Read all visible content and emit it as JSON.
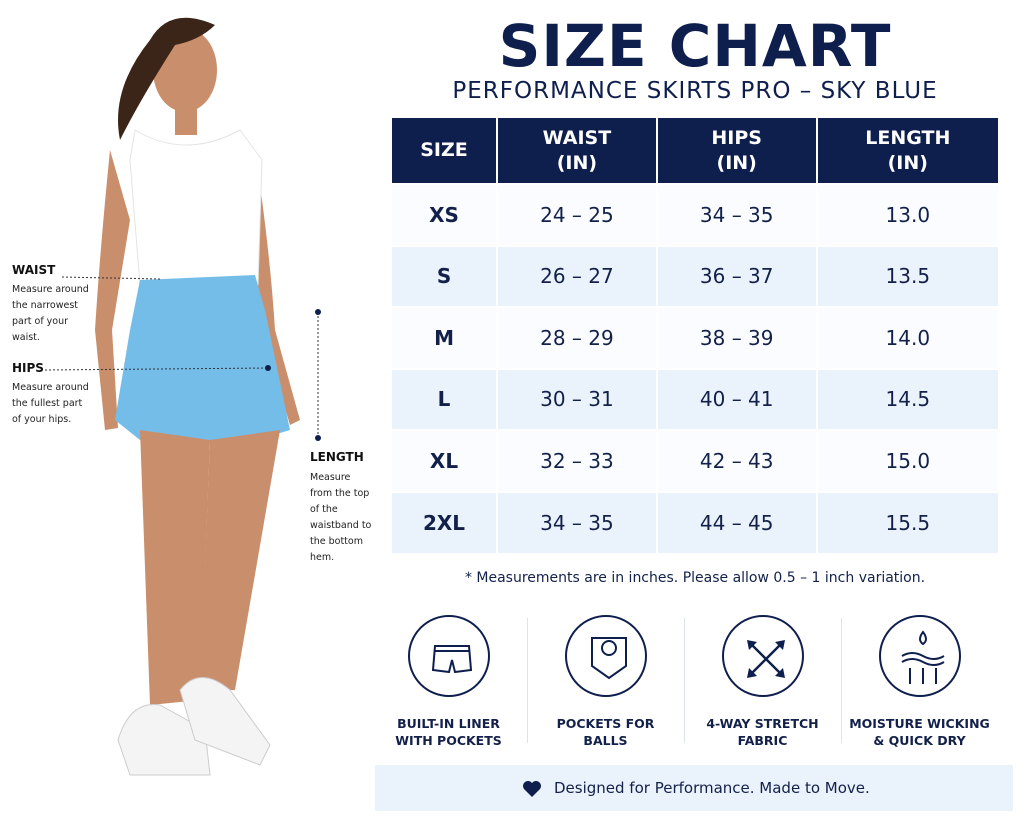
{
  "header": {
    "title": "SIZE CHART",
    "subtitle": "PERFORMANCE SKIRTS PRO – SKY BLUE"
  },
  "measures": [
    {
      "label": "WAIST",
      "text": "Measure around the narrowest part of your waist."
    },
    {
      "label": "HIPS",
      "text": "Measure around the fullest part of your hips."
    },
    {
      "label": "LENGTH",
      "text": "Measure from the top of the waistband to the bottom hem."
    }
  ],
  "table": {
    "columns": [
      {
        "label": "SIZE"
      },
      {
        "label": "WAIST",
        "unit": "(IN)"
      },
      {
        "label": "HIPS",
        "unit": "(IN)"
      },
      {
        "label": "LENGTH",
        "unit": "(IN)"
      }
    ],
    "rows": [
      [
        "XS",
        "24 – 25",
        "34 – 35",
        "13.0"
      ],
      [
        "S",
        "26 – 27",
        "36 – 37",
        "13.5"
      ],
      [
        "M",
        "28 – 29",
        "38 – 39",
        "14.0"
      ],
      [
        "L",
        "30 – 31",
        "40 – 41",
        "14.5"
      ],
      [
        "XL",
        "32 – 33",
        "42 – 43",
        "15.0"
      ],
      [
        "2XL",
        "34 – 35",
        "44 – 45",
        "15.5"
      ]
    ]
  },
  "note": "* Measurements are in inches. Please allow 0.5 – 1 inch variation.",
  "features": [
    {
      "lines": [
        "BUILT-IN LINER",
        "WITH POCKETS"
      ]
    },
    {
      "lines": [
        "POCKETS FOR",
        "BALLS"
      ]
    },
    {
      "lines": [
        "4-WAY STRETCH",
        "FABRIC"
      ]
    },
    {
      "lines": [
        "MOISTURE WICKING",
        "& QUICK DRY"
      ]
    }
  ],
  "footer": "Designed for Performance. Made to Move."
}
